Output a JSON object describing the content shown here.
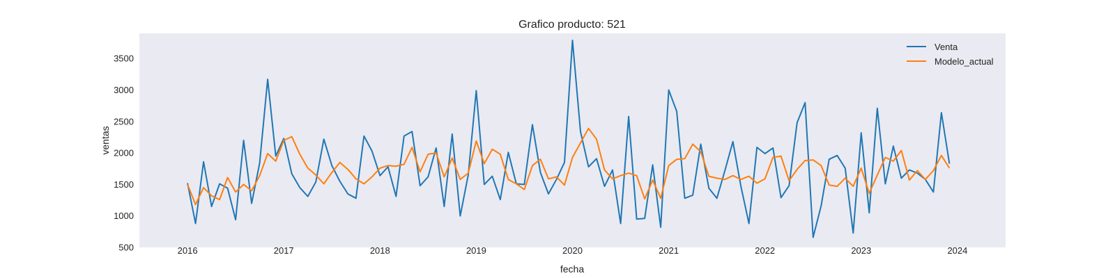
{
  "chart_data": {
    "type": "line",
    "title": "Grafico producto: 521",
    "xlabel": "fecha",
    "ylabel": "ventas",
    "xlim": [
      "2015-07-01",
      "2024-07-01"
    ],
    "ylim": [
      500,
      3900
    ],
    "x_ticks": [
      "2016",
      "2017",
      "2018",
      "2019",
      "2020",
      "2021",
      "2022",
      "2023",
      "2024"
    ],
    "y_ticks": [
      500,
      1000,
      1500,
      2000,
      2500,
      3000,
      3500
    ],
    "grid": false,
    "legend_position": "top-right",
    "x_start": "2016-01",
    "x_frequency": "monthly",
    "series": [
      {
        "name": "Venta",
        "color": "#1f77b4",
        "values": [
          1520,
          880,
          1860,
          1150,
          1510,
          1440,
          940,
          2200,
          1200,
          1840,
          3170,
          1950,
          2230,
          1670,
          1450,
          1310,
          1540,
          2220,
          1800,
          1550,
          1350,
          1280,
          2270,
          2030,
          1640,
          1780,
          1310,
          2270,
          2340,
          1480,
          1620,
          2080,
          1150,
          2300,
          1000,
          1650,
          2990,
          1500,
          1630,
          1260,
          2010,
          1510,
          1500,
          2450,
          1690,
          1350,
          1580,
          1850,
          3790,
          2340,
          1780,
          1910,
          1470,
          1730,
          880,
          2580,
          950,
          960,
          1810,
          820,
          3000,
          2660,
          1280,
          1330,
          2140,
          1440,
          1280,
          1720,
          2180,
          1470,
          880,
          2090,
          1990,
          2080,
          1290,
          1480,
          2480,
          2800,
          660,
          1160,
          1900,
          1960,
          1760,
          730,
          2320,
          1050,
          2710,
          1510,
          2110,
          1600,
          1730,
          1680,
          1580,
          1380,
          2640,
          1830
        ]
      },
      {
        "name": "Modelo_actual",
        "color": "#ff7f0e",
        "values": [
          1500,
          1180,
          1450,
          1320,
          1260,
          1610,
          1380,
          1500,
          1400,
          1640,
          1990,
          1870,
          2200,
          2260,
          1980,
          1760,
          1650,
          1510,
          1690,
          1850,
          1740,
          1590,
          1510,
          1620,
          1760,
          1800,
          1790,
          1820,
          2090,
          1700,
          1980,
          2000,
          1620,
          1920,
          1580,
          1680,
          2190,
          1830,
          2060,
          1980,
          1580,
          1510,
          1420,
          1800,
          1900,
          1590,
          1620,
          1490,
          1930,
          2160,
          2390,
          2220,
          1730,
          1590,
          1640,
          1680,
          1640,
          1270,
          1570,
          1280,
          1800,
          1900,
          1910,
          2140,
          2020,
          1630,
          1600,
          1580,
          1640,
          1580,
          1630,
          1520,
          1590,
          1930,
          1950,
          1560,
          1740,
          1880,
          1890,
          1800,
          1490,
          1470,
          1600,
          1470,
          1760,
          1360,
          1650,
          1930,
          1870,
          2040,
          1570,
          1720,
          1580,
          1720,
          1960,
          1760
        ]
      }
    ]
  }
}
